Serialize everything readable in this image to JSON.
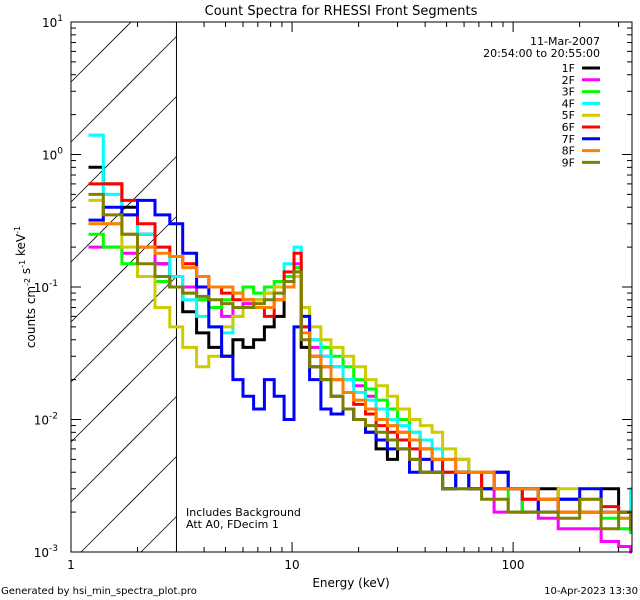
{
  "chart_data": {
    "type": "line",
    "title": "Count Spectra for RHESSI Front Segments",
    "xlabel": "Energy (keV)",
    "ylabel": "counts cm-2 s-1 keV-1",
    "xscale": "log",
    "yscale": "log",
    "xlim": [
      1,
      345
    ],
    "ylim": [
      0.001,
      10
    ],
    "x_ticks": [
      {
        "v": 1,
        "label": "1"
      },
      {
        "v": 10,
        "label": "10"
      },
      {
        "v": 100,
        "label": "100"
      }
    ],
    "y_ticks": [
      {
        "v": 10,
        "base": "10",
        "exp": "1"
      },
      {
        "v": 1,
        "base": "10",
        "exp": "0"
      },
      {
        "v": 0.1,
        "base": "10",
        "exp": "-1"
      },
      {
        "v": 0.01,
        "base": "10",
        "exp": "-2"
      },
      {
        "v": 0.001,
        "base": "10",
        "exp": "-3"
      }
    ],
    "shaded_region": [
      1,
      3
    ],
    "legend_placement": "top-right",
    "date": "11-Mar-2007",
    "time_range": "20:54:00 to 20:55:00",
    "annotations": [
      "Includes Background",
      "Att A0, FDecim 1"
    ],
    "energy_bins": [
      1.2,
      1.4,
      1.7,
      2.0,
      2.4,
      2.8,
      3.2,
      3.7,
      4.2,
      4.8,
      5.4,
      6.0,
      6.7,
      7.5,
      8.3,
      9.2,
      10.2,
      11.0,
      12,
      13.5,
      15,
      17,
      19,
      21.5,
      24,
      27,
      30,
      34,
      38,
      43,
      48,
      55,
      63,
      72,
      82,
      95,
      110,
      130,
      160,
      200,
      250,
      300,
      340
    ],
    "series": [
      {
        "name": "1F",
        "color": "#000000",
        "values": [
          0.8,
          0.6,
          0.4,
          0.25,
          0.15,
          0.1,
          0.065,
          0.045,
          0.035,
          0.03,
          0.04,
          0.035,
          0.04,
          0.05,
          0.06,
          0.1,
          0.12,
          0.035,
          0.025,
          0.02,
          0.015,
          0.012,
          0.01,
          0.008,
          0.006,
          0.005,
          0.007,
          0.005,
          0.004,
          0.004,
          0.003,
          0.004,
          0.003,
          0.003,
          0.004,
          0.003,
          0.002,
          0.003,
          0.0025,
          0.002,
          0.003,
          0.002,
          0.002
        ]
      },
      {
        "name": "2F",
        "color": "#ff00ff",
        "values": [
          0.2,
          0.2,
          0.18,
          0.2,
          0.15,
          0.12,
          0.1,
          0.08,
          0.07,
          0.06,
          0.07,
          0.075,
          0.08,
          0.09,
          0.1,
          0.12,
          0.15,
          0.05,
          0.035,
          0.03,
          0.025,
          0.02,
          0.018,
          0.015,
          0.012,
          0.01,
          0.008,
          0.007,
          0.006,
          0.005,
          0.004,
          0.005,
          0.004,
          0.003,
          0.002,
          0.002,
          0.0025,
          0.0018,
          0.0015,
          0.0015,
          0.0012,
          0.0011,
          0.001
        ]
      },
      {
        "name": "3F",
        "color": "#00ff00",
        "values": [
          0.25,
          0.2,
          0.15,
          0.12,
          0.11,
          0.1,
          0.09,
          0.08,
          0.07,
          0.08,
          0.09,
          0.1,
          0.09,
          0.1,
          0.11,
          0.12,
          0.14,
          0.05,
          0.04,
          0.035,
          0.03,
          0.025,
          0.02,
          0.017,
          0.014,
          0.012,
          0.01,
          0.008,
          0.006,
          0.005,
          0.004,
          0.003,
          0.004,
          0.003,
          0.003,
          0.002,
          0.003,
          0.0025,
          0.002,
          0.002,
          0.0018,
          0.0015,
          0.0014
        ]
      },
      {
        "name": "4F",
        "color": "#00ffff",
        "values": [
          1.4,
          0.5,
          0.35,
          0.25,
          0.2,
          0.12,
          0.08,
          0.06,
          0.05,
          0.045,
          0.06,
          0.07,
          0.08,
          0.09,
          0.1,
          0.15,
          0.2,
          0.06,
          0.04,
          0.03,
          0.025,
          0.02,
          0.016,
          0.014,
          0.012,
          0.01,
          0.009,
          0.008,
          0.007,
          0.006,
          0.005,
          0.005,
          0.004,
          0.004,
          0.003,
          0.003,
          0.003,
          0.0025,
          0.002,
          0.002,
          0.002,
          0.0018,
          0.003
        ]
      },
      {
        "name": "5F",
        "color": "#cccc00",
        "values": [
          0.45,
          0.3,
          0.2,
          0.12,
          0.07,
          0.05,
          0.035,
          0.025,
          0.03,
          0.05,
          0.06,
          0.07,
          0.08,
          0.09,
          0.1,
          0.11,
          0.12,
          0.07,
          0.05,
          0.04,
          0.035,
          0.03,
          0.025,
          0.02,
          0.018,
          0.015,
          0.012,
          0.01,
          0.009,
          0.008,
          0.006,
          0.005,
          0.004,
          0.004,
          0.003,
          0.003,
          0.003,
          0.0025,
          0.003,
          0.0025,
          0.002,
          0.002,
          0.0018
        ]
      },
      {
        "name": "6F",
        "color": "#ff0000",
        "values": [
          0.6,
          0.6,
          0.45,
          0.3,
          0.2,
          0.17,
          0.15,
          0.12,
          0.1,
          0.09,
          0.08,
          0.08,
          0.07,
          0.06,
          0.08,
          0.13,
          0.18,
          0.05,
          0.03,
          0.025,
          0.02,
          0.016,
          0.013,
          0.011,
          0.009,
          0.008,
          0.007,
          0.006,
          0.005,
          0.005,
          0.004,
          0.004,
          0.003,
          0.004,
          0.003,
          0.003,
          0.0025,
          0.0025,
          0.002,
          0.002,
          0.0022,
          0.002,
          0.0018
        ]
      },
      {
        "name": "7F",
        "color": "#0000ff",
        "values": [
          0.32,
          0.4,
          0.35,
          0.45,
          0.35,
          0.3,
          0.18,
          0.1,
          0.05,
          0.03,
          0.02,
          0.015,
          0.012,
          0.02,
          0.015,
          0.01,
          0.05,
          0.06,
          0.02,
          0.012,
          0.011,
          0.012,
          0.01,
          0.008,
          0.007,
          0.006,
          0.006,
          0.004,
          0.005,
          0.004,
          0.003,
          0.004,
          0.003,
          0.003,
          0.004,
          0.003,
          0.003,
          0.002,
          0.0025,
          0.003,
          0.002,
          0.002,
          0.0015
        ]
      },
      {
        "name": "8F",
        "color": "#ff8000",
        "values": [
          0.3,
          0.3,
          0.25,
          0.2,
          0.18,
          0.17,
          0.14,
          0.12,
          0.1,
          0.1,
          0.09,
          0.08,
          0.07,
          0.07,
          0.08,
          0.1,
          0.13,
          0.045,
          0.03,
          0.025,
          0.02,
          0.016,
          0.014,
          0.012,
          0.01,
          0.009,
          0.008,
          0.007,
          0.006,
          0.005,
          0.005,
          0.004,
          0.004,
          0.004,
          0.003,
          0.003,
          0.003,
          0.0025,
          0.002,
          0.002,
          0.002,
          0.0018,
          0.0016
        ]
      },
      {
        "name": "9F",
        "color": "#808000",
        "values": [
          0.5,
          0.35,
          0.25,
          0.15,
          0.12,
          0.1,
          0.09,
          0.085,
          0.08,
          0.075,
          0.07,
          0.07,
          0.075,
          0.08,
          0.09,
          0.11,
          0.13,
          0.04,
          0.025,
          0.02,
          0.015,
          0.012,
          0.01,
          0.009,
          0.008,
          0.007,
          0.006,
          0.005,
          0.004,
          0.004,
          0.003,
          0.003,
          0.003,
          0.0025,
          0.0025,
          0.002,
          0.002,
          0.002,
          0.0018,
          0.0025,
          0.0015,
          0.002,
          0.0015
        ]
      }
    ]
  },
  "footer": {
    "generated_by": "Generated by hsi_min_spectra_plot.pro",
    "timestamp": "10-Apr-2023 13:30"
  }
}
